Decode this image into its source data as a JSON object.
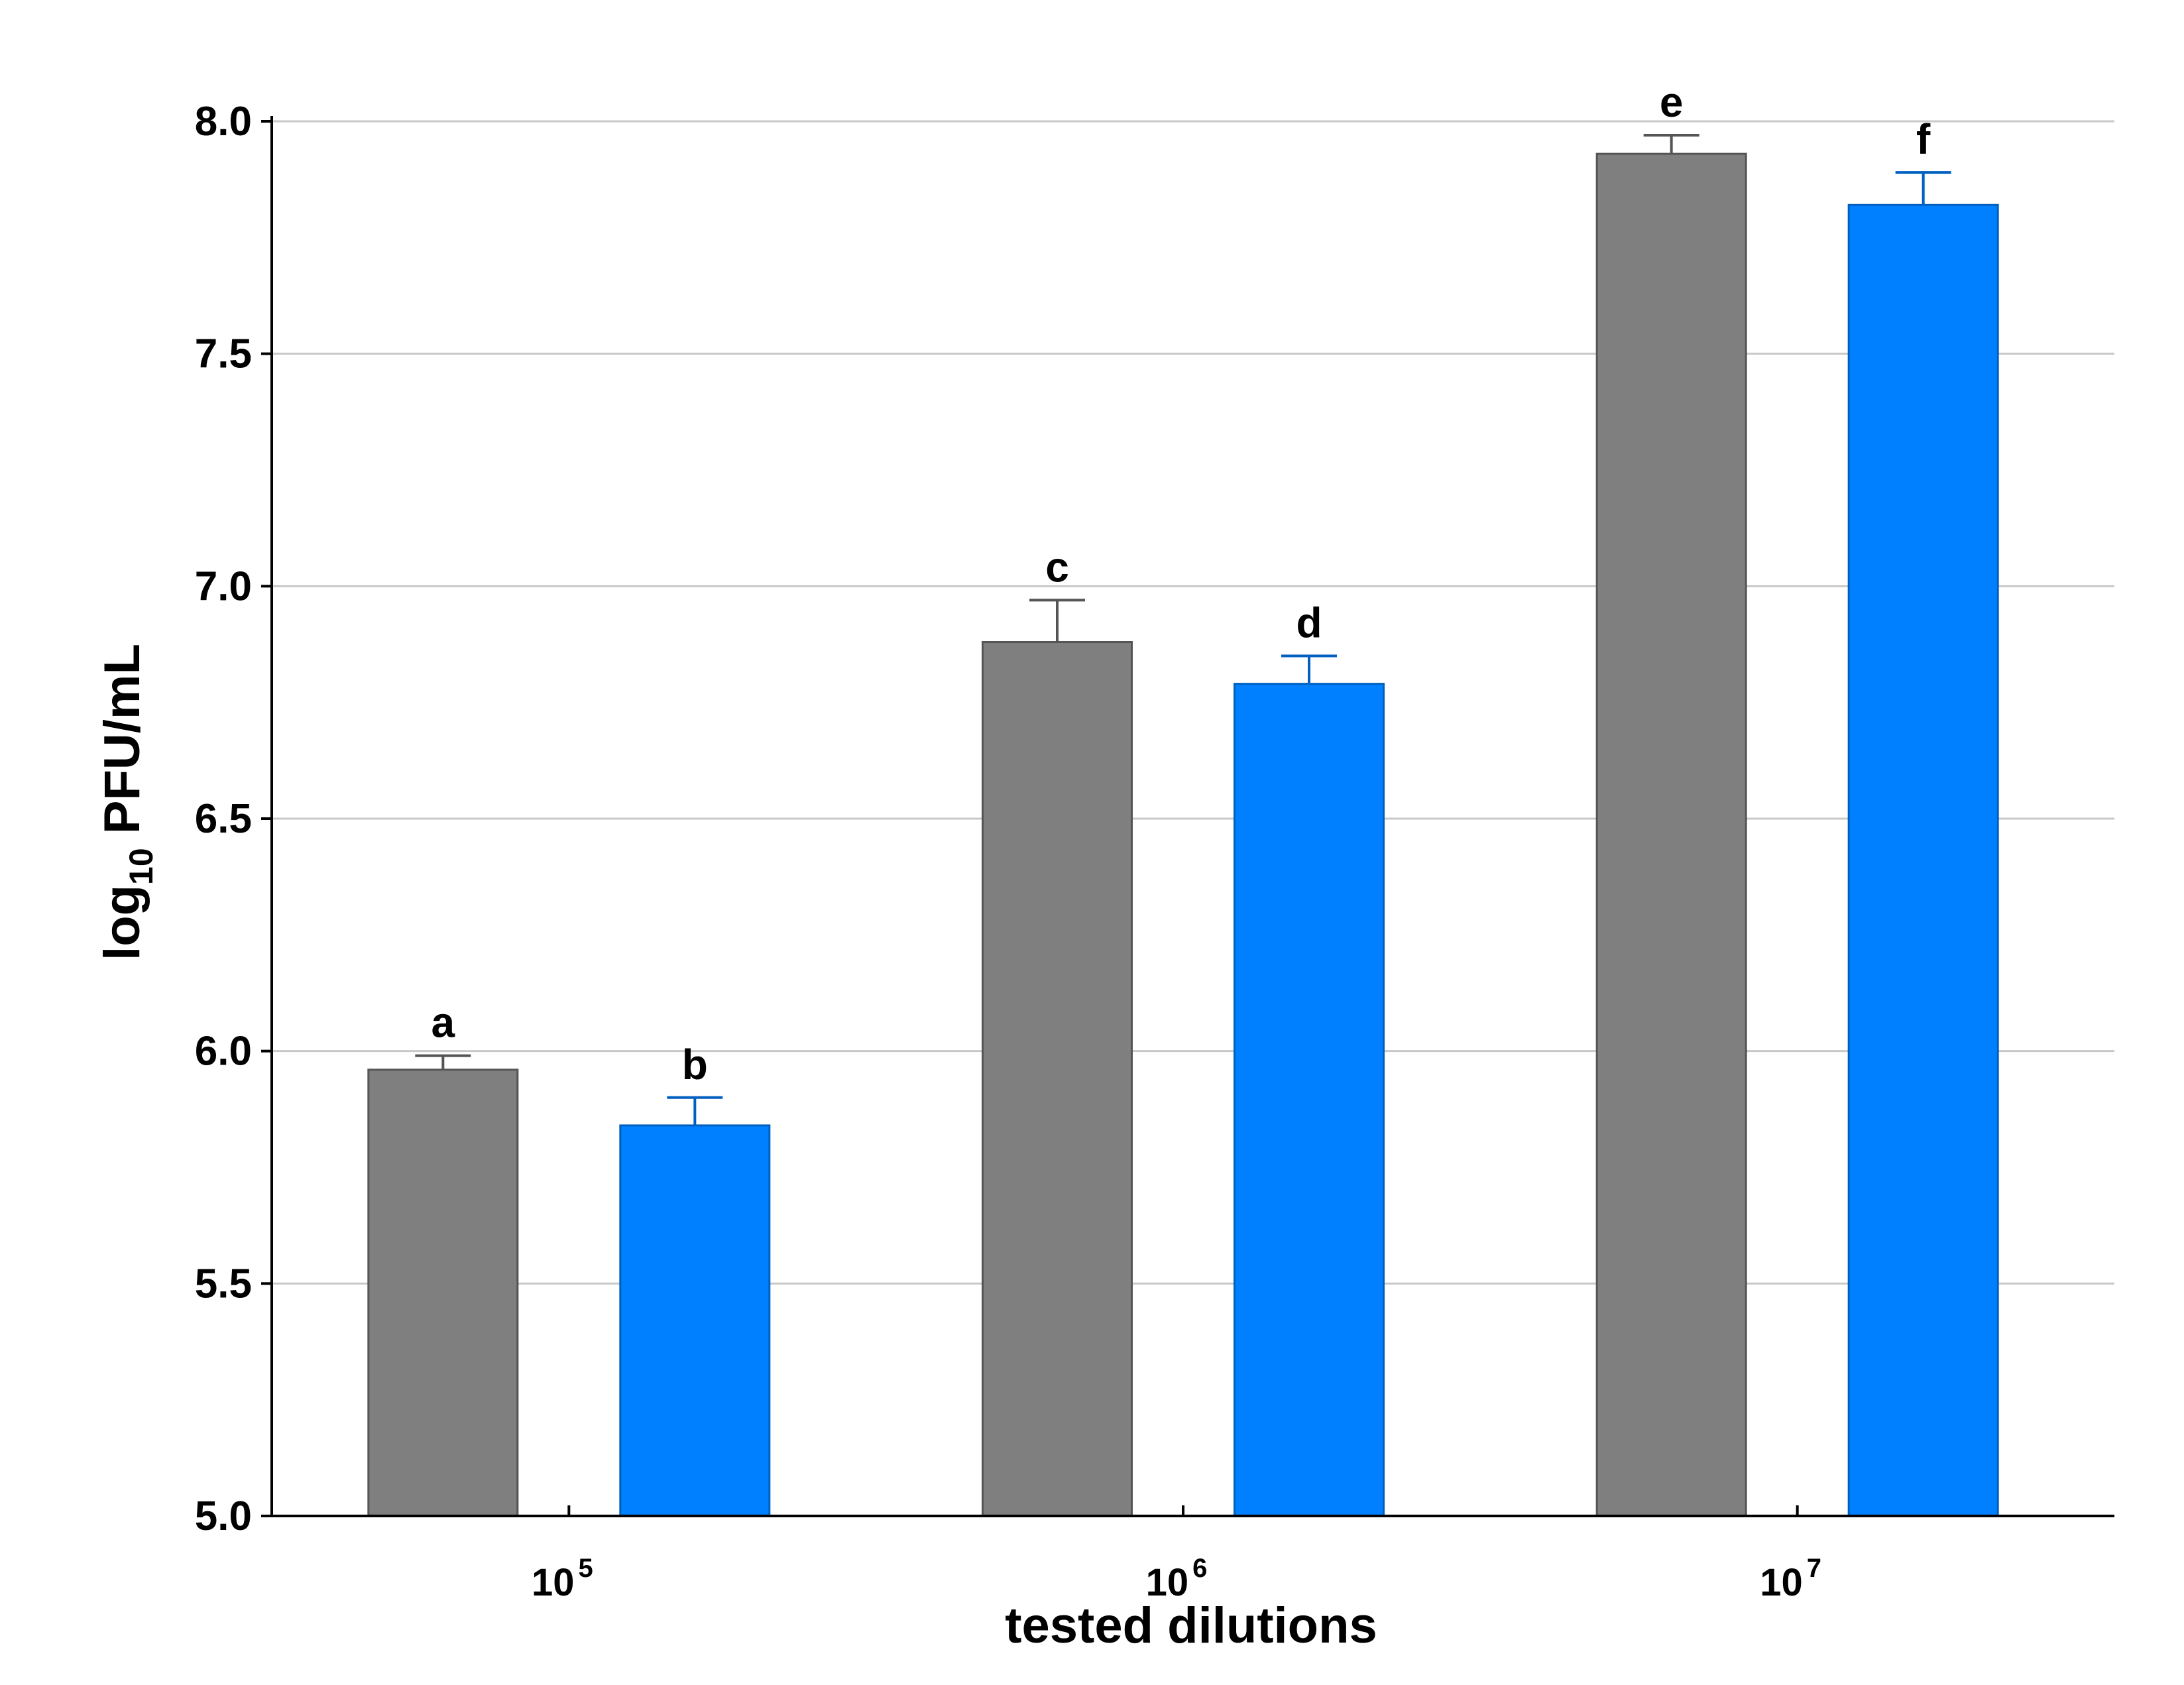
{
  "chart_data": {
    "type": "bar",
    "xlabel": "tested dilutions",
    "ylabel": {
      "prefix": "log",
      "subscript": "10",
      "suffix": " PFU/mL"
    },
    "ylim": [
      5.0,
      8.0
    ],
    "yticks": [
      "5.0",
      "5.5",
      "6.0",
      "6.5",
      "7.0",
      "7.5",
      "8.0"
    ],
    "grid": true,
    "categories": [
      {
        "base": "10",
        "exp": "5"
      },
      {
        "base": "10",
        "exp": "6"
      },
      {
        "base": "10",
        "exp": "7"
      }
    ],
    "series": [
      {
        "color": "#7f7f7f",
        "edge": "#555555",
        "values": [
          5.96,
          6.88,
          7.93
        ],
        "errors": [
          0.03,
          0.09,
          0.04
        ],
        "labels": [
          "a",
          "c",
          "e"
        ]
      },
      {
        "color": "#0080ff",
        "edge": "#0060c0",
        "values": [
          5.84,
          6.79,
          7.82
        ],
        "errors": [
          0.06,
          0.06,
          0.07
        ],
        "labels": [
          "b",
          "d",
          "f"
        ]
      }
    ]
  }
}
